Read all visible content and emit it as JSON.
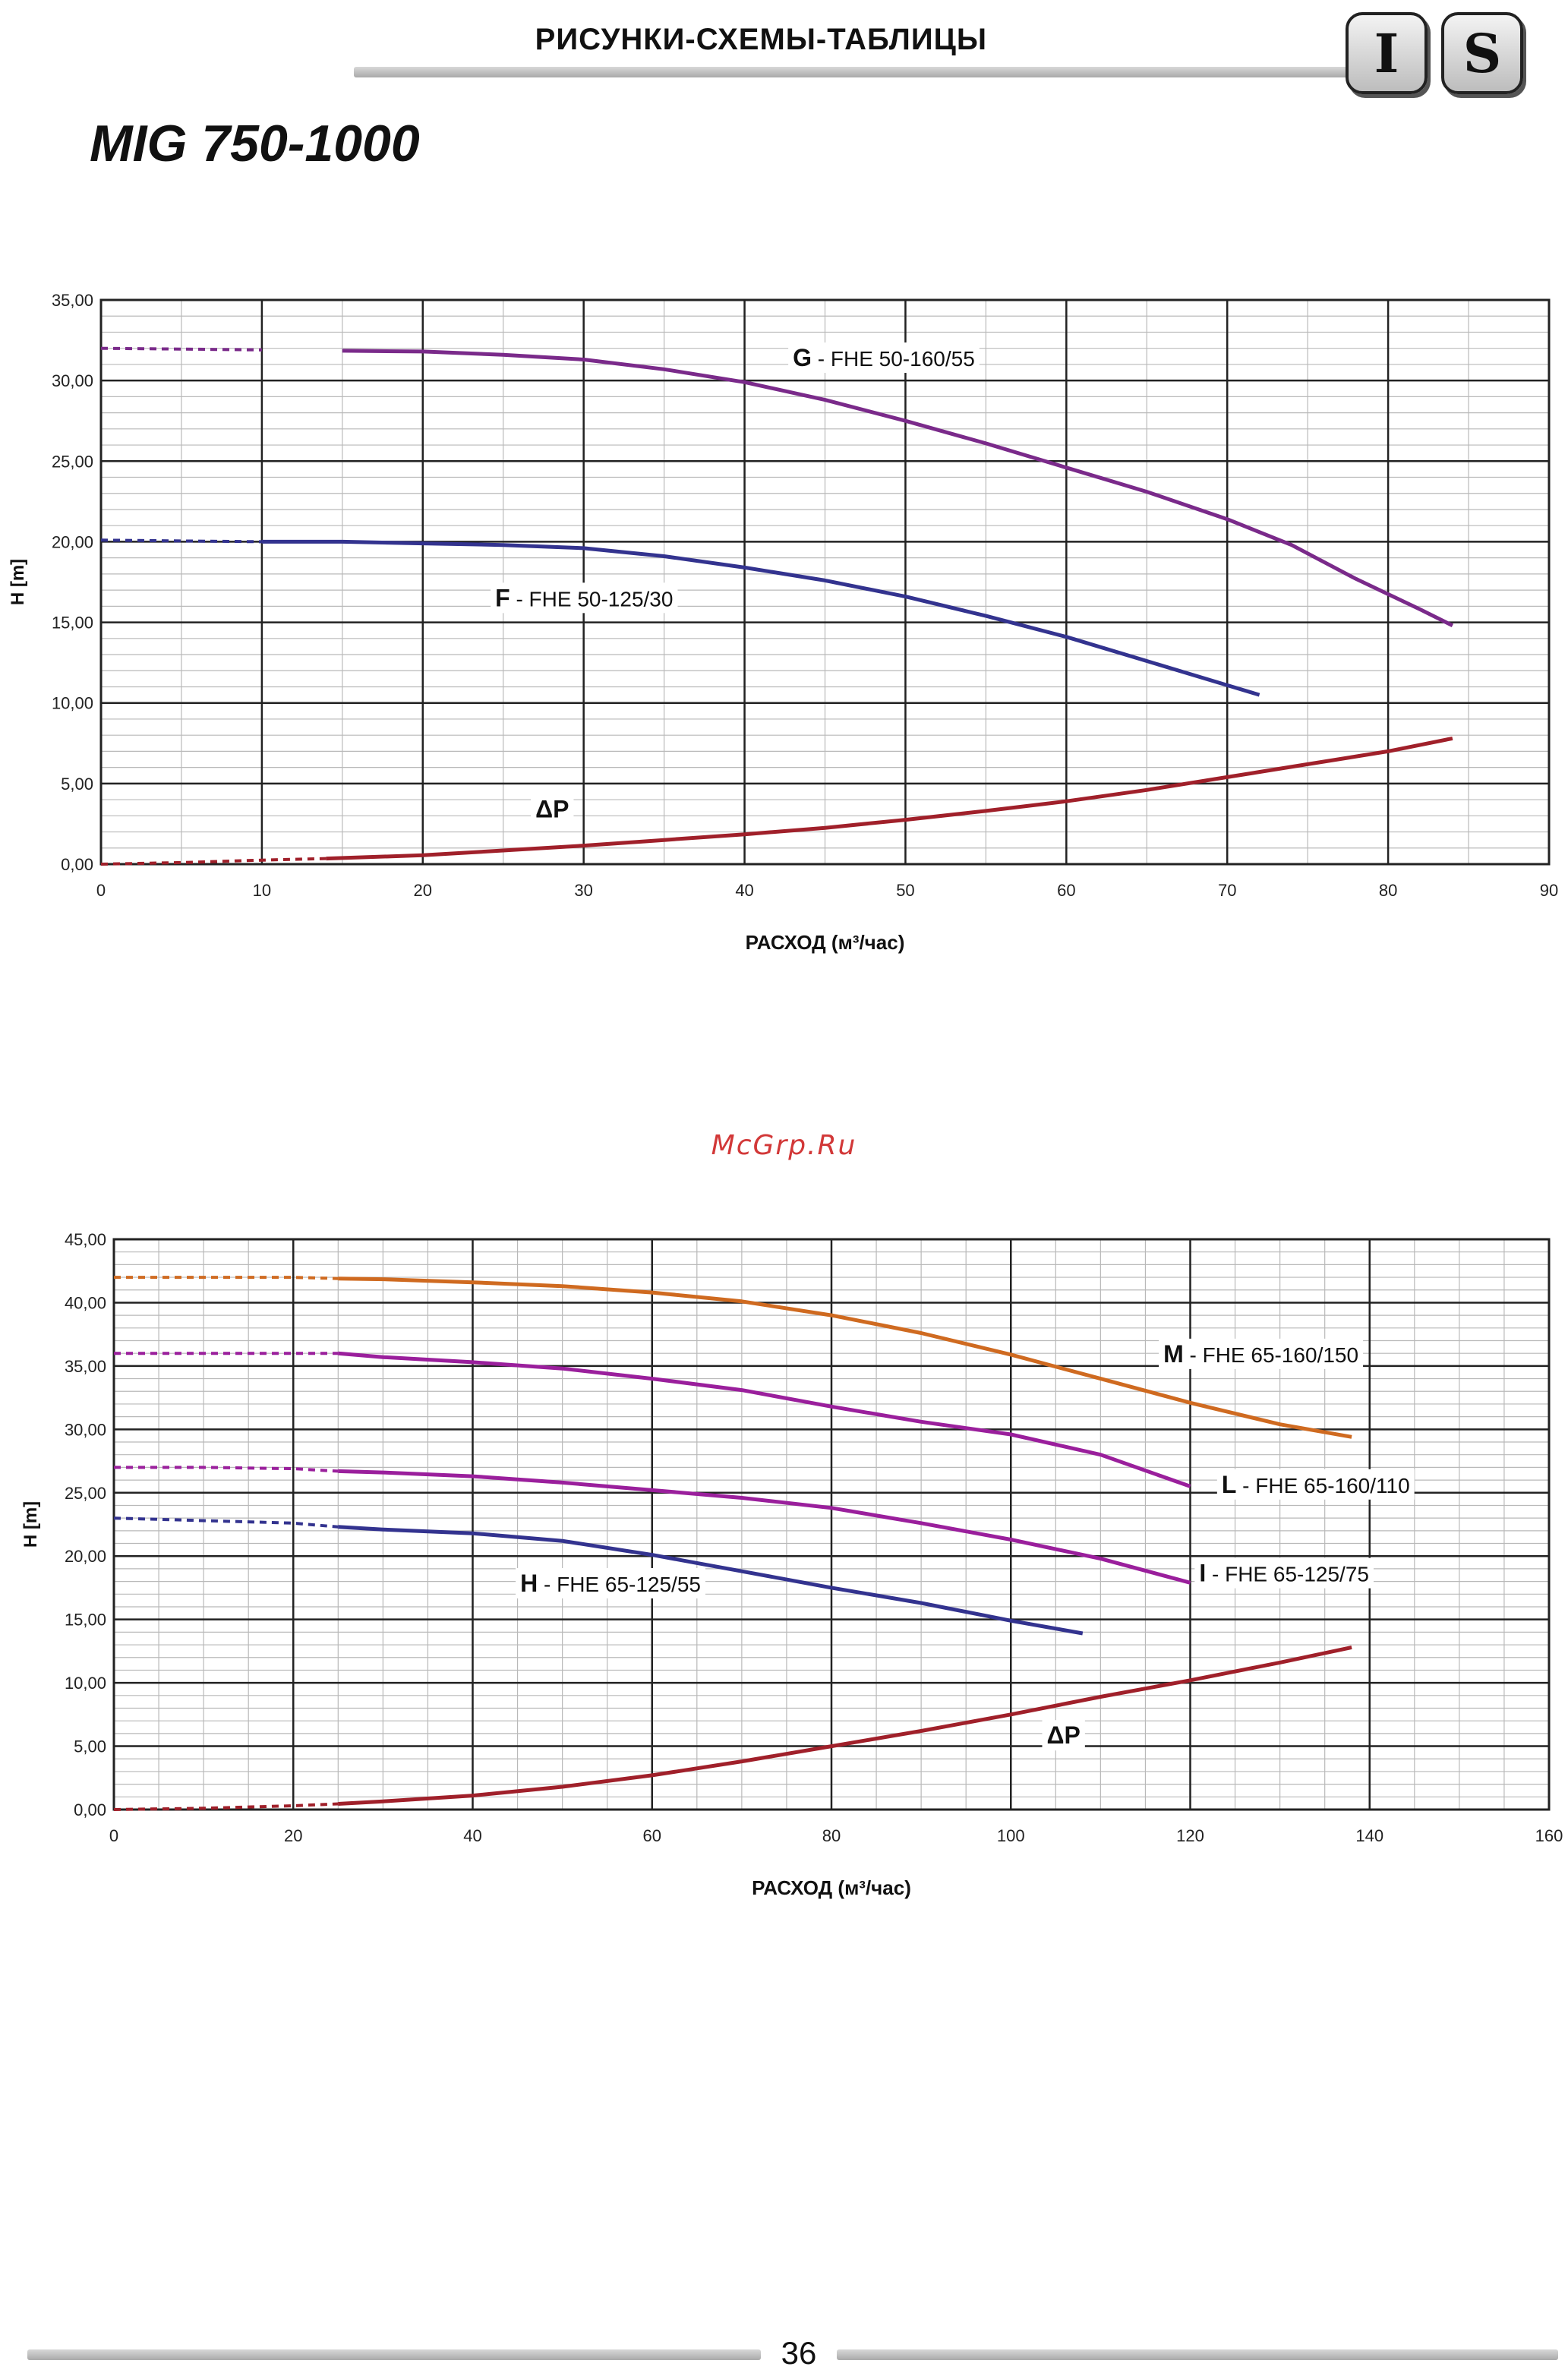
{
  "header": {
    "title": "РИСУНКИ-СХЕМЫ-ТАБЛИЦЫ",
    "badge_left": "I",
    "badge_right": "S"
  },
  "model_title": "MIG 750-1000",
  "watermark": "McGrp.Ru",
  "page_number": "36",
  "colors": {
    "purple": "#7a2a8a",
    "blue": "#33338f",
    "red": "#a0202a",
    "orange": "#cf6a20",
    "magenta": "#9a1f9c"
  },
  "chart_data": [
    {
      "type": "line",
      "xlabel": "РАСХОД (м³/час)",
      "ylabel": "H [m]",
      "xlim": [
        0,
        90
      ],
      "ylim": [
        0,
        35
      ],
      "x_major_step": 10,
      "y_major_step": 5,
      "x_ticks": [
        "0",
        "10",
        "20",
        "30",
        "40",
        "50",
        "60",
        "70",
        "80",
        "90"
      ],
      "y_ticks": [
        "0,00",
        "5,00",
        "10,00",
        "15,00",
        "20,00",
        "25,00",
        "30,00",
        "35,00"
      ],
      "grid": true,
      "series": [
        {
          "name": "G",
          "desc": "- FHE 50-160/55",
          "color": "#7a2a8a",
          "dashed_until": 13,
          "label_at": [
            43,
            30.9
          ],
          "points": [
            [
              0,
              32
            ],
            [
              5,
              31.95
            ],
            [
              10,
              31.9
            ],
            [
              15,
              31.85
            ],
            [
              20,
              31.8
            ],
            [
              25,
              31.6
            ],
            [
              30,
              31.3
            ],
            [
              35,
              30.7
            ],
            [
              40,
              29.9
            ],
            [
              45,
              28.8
            ],
            [
              50,
              27.5
            ],
            [
              55,
              26.1
            ],
            [
              60,
              24.6
            ],
            [
              65,
              23.1
            ],
            [
              70,
              21.4
            ],
            [
              74,
              19.8
            ],
            [
              78,
              17.7
            ],
            [
              82,
              15.8
            ],
            [
              84,
              14.8
            ]
          ]
        },
        {
          "name": "F",
          "desc": "- FHE 50-125/30",
          "color": "#33338f",
          "dashed_until": 10,
          "label_at": [
            24.5,
            16
          ],
          "points": [
            [
              0,
              20.1
            ],
            [
              5,
              20.05
            ],
            [
              10,
              20
            ],
            [
              15,
              20
            ],
            [
              20,
              19.9
            ],
            [
              25,
              19.8
            ],
            [
              30,
              19.6
            ],
            [
              35,
              19.1
            ],
            [
              40,
              18.4
            ],
            [
              45,
              17.6
            ],
            [
              50,
              16.6
            ],
            [
              55,
              15.4
            ],
            [
              60,
              14.1
            ],
            [
              65,
              12.6
            ],
            [
              70,
              11.1
            ],
            [
              72,
              10.5
            ]
          ]
        },
        {
          "name": "ΔP",
          "desc": "",
          "color": "#a0202a",
          "dashed_until": 14,
          "label_at": [
            27,
            2.9
          ],
          "points": [
            [
              0,
              0
            ],
            [
              5,
              0.1
            ],
            [
              10,
              0.25
            ],
            [
              14,
              0.35
            ],
            [
              20,
              0.55
            ],
            [
              25,
              0.85
            ],
            [
              30,
              1.15
            ],
            [
              35,
              1.5
            ],
            [
              40,
              1.85
            ],
            [
              45,
              2.25
            ],
            [
              50,
              2.75
            ],
            [
              55,
              3.3
            ],
            [
              60,
              3.9
            ],
            [
              65,
              4.6
            ],
            [
              70,
              5.4
            ],
            [
              75,
              6.2
            ],
            [
              80,
              7
            ],
            [
              84,
              7.8
            ]
          ]
        }
      ]
    },
    {
      "type": "line",
      "xlabel": "РАСХОД (м³/час)",
      "ylabel": "H [m]",
      "xlim": [
        0,
        160
      ],
      "ylim": [
        0,
        45
      ],
      "x_major_step": 20,
      "y_major_step": 5,
      "x_ticks": [
        "0",
        "20",
        "40",
        "60",
        "80",
        "100",
        "120",
        "140",
        "160"
      ],
      "y_ticks": [
        "0,00",
        "5,00",
        "10,00",
        "15,00",
        "20,00",
        "25,00",
        "30,00",
        "35,00",
        "40,00",
        "45,00"
      ],
      "grid": true,
      "series": [
        {
          "name": "M",
          "desc": "- FHE 65-160/150",
          "color": "#cf6a20",
          "dashed_until": 25,
          "label_at": [
            117,
            35.3
          ],
          "points": [
            [
              0,
              42
            ],
            [
              10,
              42
            ],
            [
              20,
              42
            ],
            [
              25,
              41.9
            ],
            [
              30,
              41.85
            ],
            [
              40,
              41.6
            ],
            [
              50,
              41.3
            ],
            [
              60,
              40.8
            ],
            [
              70,
              40.1
            ],
            [
              80,
              39
            ],
            [
              90,
              37.6
            ],
            [
              100,
              35.9
            ],
            [
              110,
              34
            ],
            [
              120,
              32.1
            ],
            [
              130,
              30.4
            ],
            [
              138,
              29.4
            ]
          ]
        },
        {
          "name": "L",
          "desc": "- FHE 65-160/110",
          "color": "#9a1f9c",
          "dashed_until": 25,
          "label_at": [
            123.5,
            25
          ],
          "points": [
            [
              0,
              36
            ],
            [
              10,
              36
            ],
            [
              20,
              36
            ],
            [
              25,
              36
            ],
            [
              30,
              35.7
            ],
            [
              40,
              35.3
            ],
            [
              50,
              34.8
            ],
            [
              60,
              34
            ],
            [
              70,
              33.1
            ],
            [
              80,
              31.8
            ],
            [
              90,
              30.6
            ],
            [
              100,
              29.6
            ],
            [
              110,
              28
            ],
            [
              120,
              25.5
            ]
          ]
        },
        {
          "name": "I",
          "desc": "- FHE 65-125/75",
          "color": "#9a1f9c",
          "dashed_until": 25,
          "label_at": [
            121,
            18
          ],
          "points": [
            [
              0,
              27
            ],
            [
              10,
              27
            ],
            [
              20,
              26.9
            ],
            [
              25,
              26.7
            ],
            [
              30,
              26.6
            ],
            [
              40,
              26.3
            ],
            [
              50,
              25.8
            ],
            [
              60,
              25.2
            ],
            [
              70,
              24.6
            ],
            [
              80,
              23.8
            ],
            [
              90,
              22.6
            ],
            [
              100,
              21.3
            ],
            [
              110,
              19.8
            ],
            [
              120,
              17.9
            ]
          ]
        },
        {
          "name": "H",
          "desc": "- FHE 65-125/55",
          "color": "#33338f",
          "dashed_until": 25,
          "label_at": [
            45.3,
            17.2
          ],
          "points": [
            [
              0,
              23
            ],
            [
              10,
              22.8
            ],
            [
              20,
              22.6
            ],
            [
              25,
              22.3
            ],
            [
              30,
              22.1
            ],
            [
              40,
              21.8
            ],
            [
              50,
              21.2
            ],
            [
              60,
              20.1
            ],
            [
              70,
              18.8
            ],
            [
              80,
              17.5
            ],
            [
              90,
              16.3
            ],
            [
              100,
              14.9
            ],
            [
              108,
              13.9
            ]
          ]
        },
        {
          "name": "ΔP",
          "desc": "",
          "color": "#a0202a",
          "dashed_until": 25,
          "label_at": [
            104,
            5.2
          ],
          "points": [
            [
              0,
              0
            ],
            [
              10,
              0.1
            ],
            [
              20,
              0.3
            ],
            [
              25,
              0.45
            ],
            [
              30,
              0.65
            ],
            [
              40,
              1.1
            ],
            [
              50,
              1.8
            ],
            [
              60,
              2.7
            ],
            [
              70,
              3.8
            ],
            [
              80,
              5
            ],
            [
              90,
              6.2
            ],
            [
              100,
              7.5
            ],
            [
              110,
              8.9
            ],
            [
              120,
              10.2
            ],
            [
              130,
              11.6
            ],
            [
              138,
              12.8
            ]
          ]
        }
      ]
    }
  ]
}
